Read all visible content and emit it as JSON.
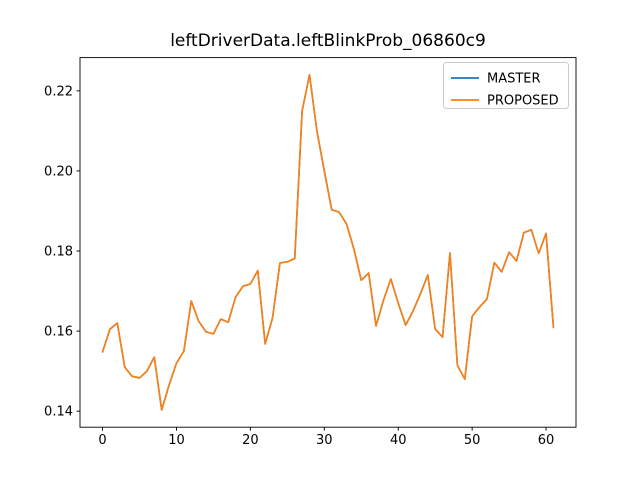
{
  "title": "leftDriverData.leftBlinkProb_06860c9",
  "legend": {
    "position": "upper right",
    "items": [
      {
        "label": "MASTER",
        "color": "#1f77b4"
      },
      {
        "label": "PROPOSED",
        "color": "#ff7f0e"
      }
    ]
  },
  "chart_data": {
    "type": "line",
    "title": "leftDriverData.leftBlinkProb_06860c9",
    "xlabel": "",
    "ylabel": "",
    "grid": false,
    "legend_position": "upper right",
    "xlim": [
      -3.05,
      64.05
    ],
    "ylim": [
      0.136,
      0.2283
    ],
    "xticks": {
      "values": [
        0,
        10,
        20,
        30,
        40,
        50,
        60
      ],
      "labels": [
        "0",
        "10",
        "20",
        "30",
        "40",
        "50",
        "60"
      ]
    },
    "yticks": {
      "values": [
        0.14,
        0.16,
        0.18,
        0.2,
        0.22
      ],
      "labels": [
        "0.14",
        "0.16",
        "0.18",
        "0.20",
        "0.22"
      ]
    },
    "x": [
      0,
      1,
      2,
      3,
      4,
      5,
      6,
      7,
      8,
      9,
      10,
      11,
      12,
      13,
      14,
      15,
      16,
      17,
      18,
      19,
      20,
      21,
      22,
      23,
      24,
      25,
      26,
      27,
      28,
      29,
      30,
      31,
      32,
      33,
      34,
      35,
      36,
      37,
      38,
      39,
      40,
      41,
      42,
      43,
      44,
      45,
      46,
      47,
      48,
      49,
      50,
      51,
      52,
      53,
      54,
      55,
      56,
      57,
      58,
      59,
      60,
      61
    ],
    "series": [
      {
        "name": "MASTER",
        "color": "#1f77b4",
        "values": [
          0.1548,
          0.1605,
          0.162,
          0.151,
          0.1487,
          0.1483,
          0.15,
          0.1535,
          0.1403,
          0.1465,
          0.152,
          0.155,
          0.1675,
          0.1625,
          0.1598,
          0.1593,
          0.163,
          0.1622,
          0.1685,
          0.1712,
          0.1718,
          0.1751,
          0.1568,
          0.1633,
          0.177,
          0.1773,
          0.1781,
          0.215,
          0.224,
          0.21,
          0.2,
          0.1903,
          0.1897,
          0.1868,
          0.1805,
          0.1727,
          0.1745,
          0.1613,
          0.1677,
          0.173,
          0.167,
          0.1615,
          0.165,
          0.1693,
          0.174,
          0.1605,
          0.1585,
          0.1795,
          0.1515,
          0.148,
          0.1637,
          0.166,
          0.168,
          0.1771,
          0.1748,
          0.1797,
          0.1775,
          0.1846,
          0.1853,
          0.1794,
          0.1844,
          0.1609
        ]
      },
      {
        "name": "PROPOSED",
        "color": "#ff7f0e",
        "values": [
          0.1548,
          0.1605,
          0.162,
          0.151,
          0.1487,
          0.1483,
          0.15,
          0.1535,
          0.1403,
          0.1465,
          0.152,
          0.155,
          0.1675,
          0.1625,
          0.1598,
          0.1593,
          0.163,
          0.1622,
          0.1685,
          0.1712,
          0.1718,
          0.1751,
          0.1568,
          0.1633,
          0.177,
          0.1773,
          0.1781,
          0.215,
          0.224,
          0.21,
          0.2,
          0.1903,
          0.1897,
          0.1868,
          0.1805,
          0.1727,
          0.1745,
          0.1613,
          0.1677,
          0.173,
          0.167,
          0.1615,
          0.165,
          0.1693,
          0.174,
          0.1605,
          0.1585,
          0.1795,
          0.1515,
          0.148,
          0.1637,
          0.166,
          0.168,
          0.1771,
          0.1748,
          0.1797,
          0.1775,
          0.1846,
          0.1853,
          0.1794,
          0.1844,
          0.1609
        ]
      }
    ],
    "note_series_overlap": "MASTER and PROPOSED curves are identical; orange PROPOSED is drawn on top of blue MASTER"
  }
}
